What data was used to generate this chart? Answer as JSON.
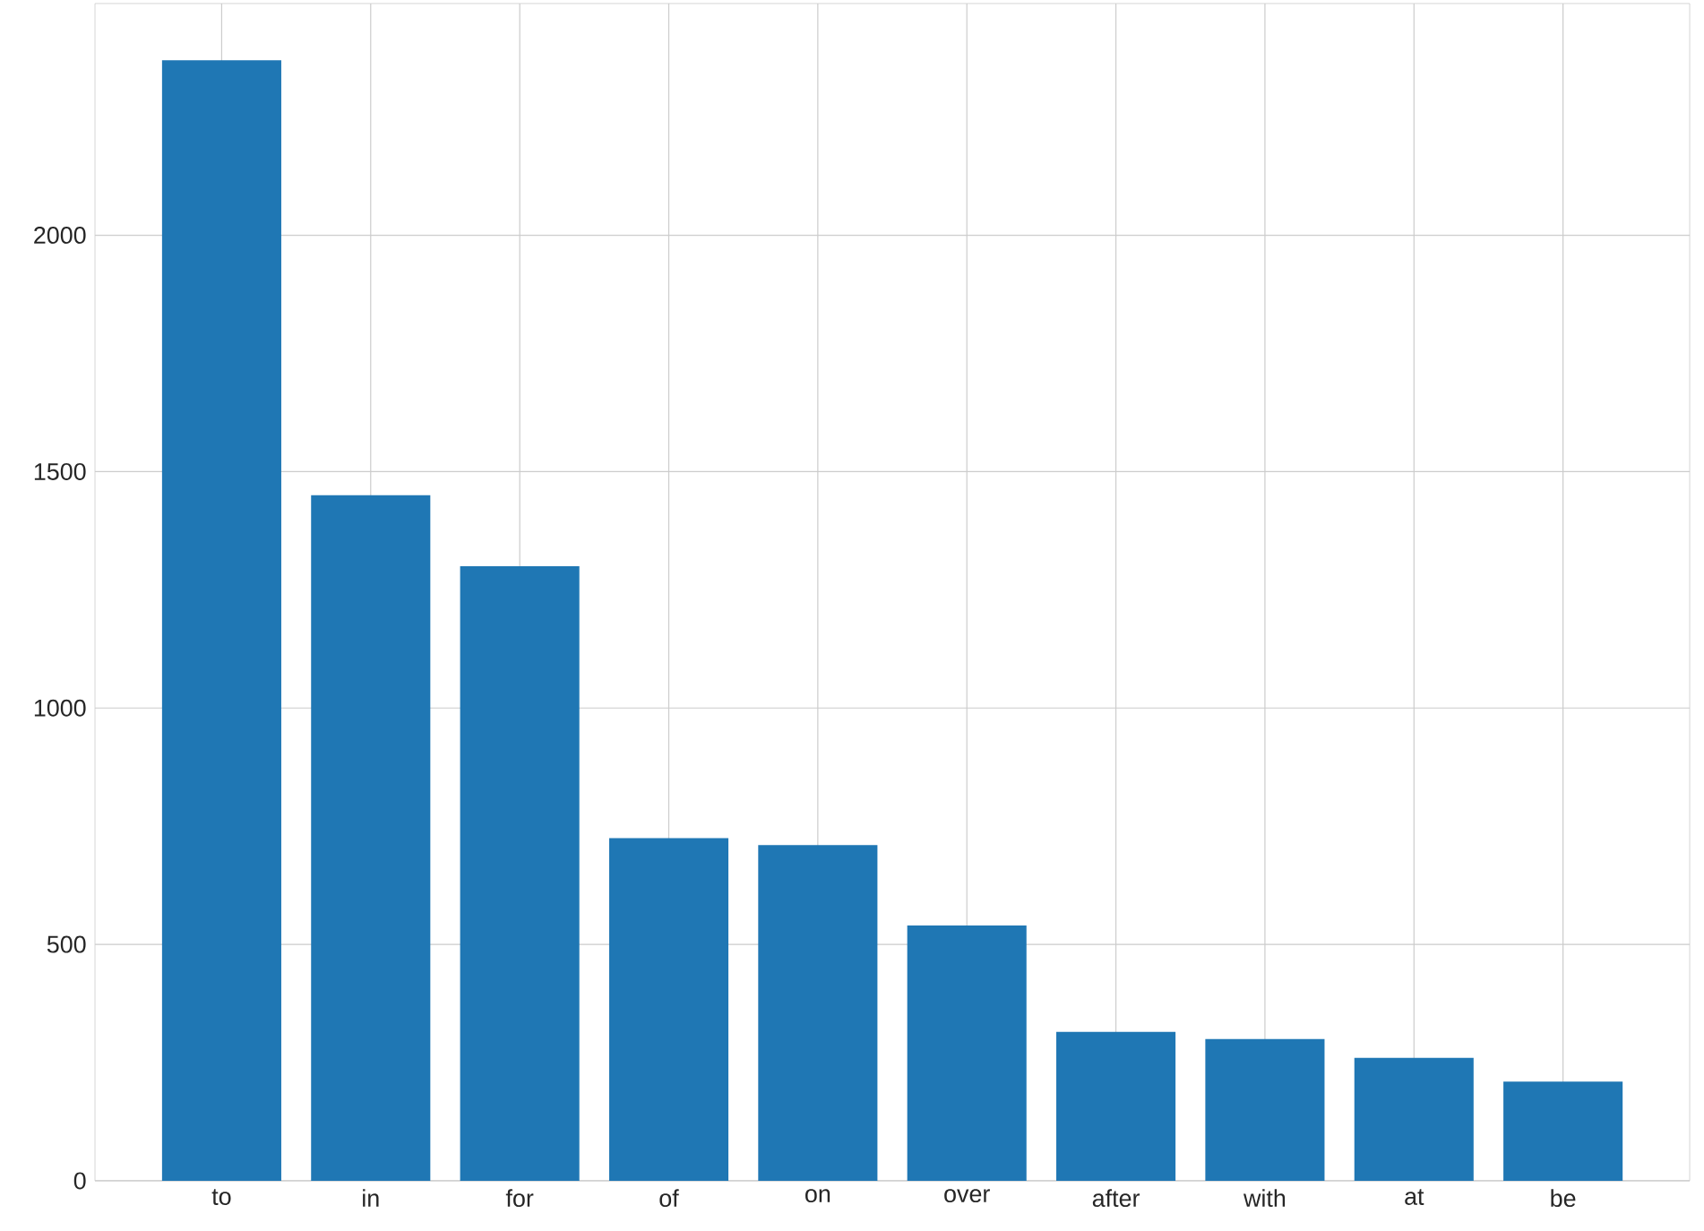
{
  "chart_data": {
    "type": "bar",
    "categories": [
      "to",
      "in",
      "for",
      "of",
      "on",
      "over",
      "after",
      "with",
      "at",
      "be"
    ],
    "values": [
      2370,
      1450,
      1300,
      725,
      710,
      540,
      315,
      300,
      260,
      210
    ],
    "color": "#1f77b4",
    "ylim": [
      0,
      2490
    ],
    "yticks": [
      0,
      500,
      1000,
      1500,
      2000
    ],
    "grid": true
  }
}
